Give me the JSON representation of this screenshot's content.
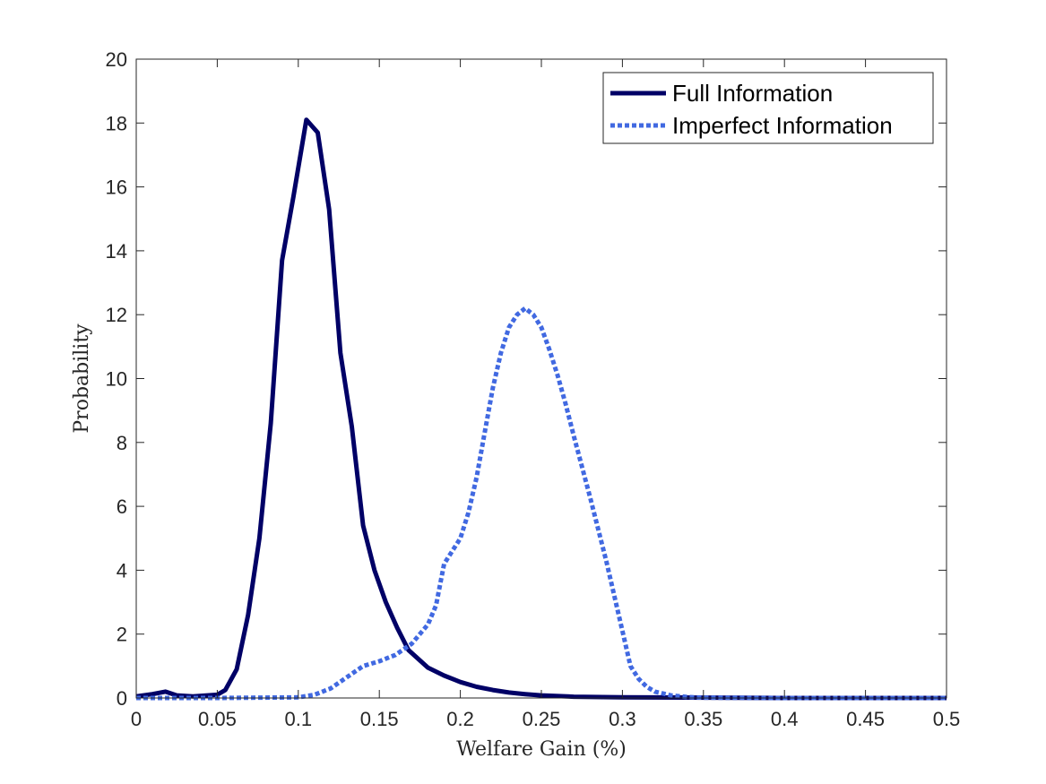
{
  "chart_data": {
    "type": "line",
    "title": "",
    "xlabel": "Welfare Gain (%)",
    "ylabel": "Probability",
    "xlim": [
      0,
      0.5
    ],
    "ylim": [
      0,
      20
    ],
    "xticks": [
      0,
      0.05,
      0.1,
      0.15,
      0.2,
      0.25,
      0.3,
      0.35,
      0.4,
      0.45,
      0.5
    ],
    "xtick_labels": [
      "0",
      "0.05",
      "0.1",
      "0.15",
      "0.2",
      "0.25",
      "0.3",
      "0.35",
      "0.4",
      "0.45",
      "0.5"
    ],
    "yticks": [
      0,
      2,
      4,
      6,
      8,
      10,
      12,
      14,
      16,
      18,
      20
    ],
    "ytick_labels": [
      "0",
      "2",
      "4",
      "6",
      "8",
      "10",
      "12",
      "14",
      "16",
      "18",
      "20"
    ],
    "grid": false,
    "legend_position": "top-right",
    "series": [
      {
        "name": "Full Information",
        "style": "solid",
        "color": "#000066",
        "x": [
          0,
          0.01,
          0.018,
          0.025,
          0.035,
          0.05,
          0.055,
          0.062,
          0.069,
          0.076,
          0.083,
          0.09,
          0.097,
          0.105,
          0.112,
          0.119,
          0.126,
          0.133,
          0.14,
          0.147,
          0.154,
          0.161,
          0.168,
          0.18,
          0.19,
          0.2,
          0.21,
          0.22,
          0.23,
          0.24,
          0.25,
          0.27,
          0.3,
          0.35,
          0.4,
          0.45,
          0.5
        ],
        "y": [
          0.05,
          0.12,
          0.2,
          0.08,
          0.05,
          0.1,
          0.25,
          0.9,
          2.6,
          5.0,
          8.6,
          13.7,
          15.7,
          18.1,
          17.7,
          15.3,
          10.8,
          8.5,
          5.4,
          4.0,
          3.0,
          2.2,
          1.5,
          0.95,
          0.7,
          0.5,
          0.35,
          0.25,
          0.17,
          0.12,
          0.08,
          0.04,
          0.02,
          0.01,
          0.0,
          0.0,
          0.0
        ]
      },
      {
        "name": "Imperfect Information",
        "style": "dotted",
        "color": "#4169E1",
        "x": [
          0,
          0.05,
          0.1,
          0.11,
          0.12,
          0.13,
          0.14,
          0.15,
          0.16,
          0.17,
          0.18,
          0.185,
          0.19,
          0.2,
          0.205,
          0.21,
          0.215,
          0.22,
          0.225,
          0.23,
          0.235,
          0.24,
          0.245,
          0.25,
          0.255,
          0.26,
          0.265,
          0.27,
          0.28,
          0.29,
          0.3,
          0.305,
          0.31,
          0.315,
          0.32,
          0.33,
          0.34,
          0.35,
          0.4,
          0.45,
          0.5
        ],
        "y": [
          0.0,
          0.0,
          0.02,
          0.1,
          0.3,
          0.65,
          1.0,
          1.15,
          1.35,
          1.7,
          2.3,
          2.9,
          4.2,
          5.0,
          5.8,
          6.9,
          8.3,
          9.7,
          10.8,
          11.6,
          12.0,
          12.2,
          12.0,
          11.6,
          10.9,
          10.1,
          9.2,
          8.2,
          6.3,
          4.3,
          2.1,
          1.0,
          0.6,
          0.35,
          0.2,
          0.08,
          0.03,
          0.01,
          0.0,
          0.0,
          0.0
        ]
      }
    ]
  }
}
